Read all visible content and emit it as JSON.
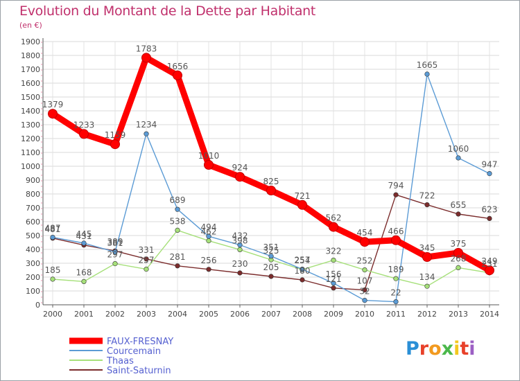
{
  "title": "Evolution du Montant de la Dette par Habitant",
  "subtitle": "(en €)",
  "logo": {
    "letters": [
      "P",
      "r",
      "o",
      "x",
      "i",
      "t",
      "i"
    ],
    "colors": [
      "#2a8fd6",
      "#e8412a",
      "#f29a1f",
      "#4bb84b",
      "#f2c81f",
      "#e8412a",
      "#9c5fc4"
    ]
  },
  "chart_data": {
    "type": "line",
    "x": [
      "2000",
      "2001",
      "2002",
      "2003",
      "2004",
      "2005",
      "2006",
      "2007",
      "2008",
      "2009",
      "2010",
      "2011",
      "2012",
      "2013",
      "2014"
    ],
    "ylim": [
      0,
      1900
    ],
    "yticks": [
      "0",
      "100",
      "200",
      "300",
      "400",
      "500",
      "600",
      "700",
      "800",
      "900",
      "1000",
      "1100",
      "1200",
      "1300",
      "1400",
      "1500",
      "1600",
      "1700",
      "1800",
      "1900"
    ],
    "grid": true,
    "legend_position": "bottom-left",
    "series": [
      {
        "name": "FAUX-FRESNAY",
        "color": "#ff0000",
        "values": [
          1379,
          1233,
          1159,
          1783,
          1656,
          1010,
          924,
          825,
          721,
          562,
          454,
          466,
          345,
          375,
          249
        ],
        "labels": [
          "1379",
          "1233",
          "1159",
          "1783",
          "1656",
          "1010",
          "924",
          "825",
          "721",
          "562",
          "454",
          "466",
          "345",
          "375",
          "249"
        ]
      },
      {
        "name": "Courcemain",
        "color": "#5b9bd5",
        "values": [
          487,
          445,
          381,
          1234,
          689,
          494,
          432,
          351,
          257,
          156,
          32,
          22,
          1665,
          1060,
          947
        ],
        "labels": [
          "487",
          "445",
          "381",
          "1234",
          "689",
          "494",
          "432",
          "351",
          "257",
          "156",
          "32",
          "22",
          "1665",
          "1060",
          "947"
        ]
      },
      {
        "name": "Thaas",
        "color": "#a6e07a",
        "values": [
          185,
          168,
          297,
          257,
          538,
          462,
          398,
          325,
          254,
          322,
          252,
          189,
          134,
          268,
          231
        ],
        "labels": [
          "185",
          "168",
          "297",
          "257",
          "538",
          "462",
          "398",
          "325",
          "254",
          "322",
          "252",
          "189",
          "134",
          "268",
          "231"
        ]
      },
      {
        "name": "Saint-Saturnin",
        "color": "#7b2c2c",
        "values": [
          481,
          431,
          389,
          331,
          281,
          256,
          230,
          205,
          180,
          121,
          107,
          794,
          722,
          655,
          623
        ],
        "labels": [
          "481",
          "431",
          "389",
          "331",
          "281",
          "256",
          "230",
          "205",
          "180",
          "121",
          "107",
          "794",
          "722",
          "655",
          "623"
        ]
      }
    ]
  }
}
